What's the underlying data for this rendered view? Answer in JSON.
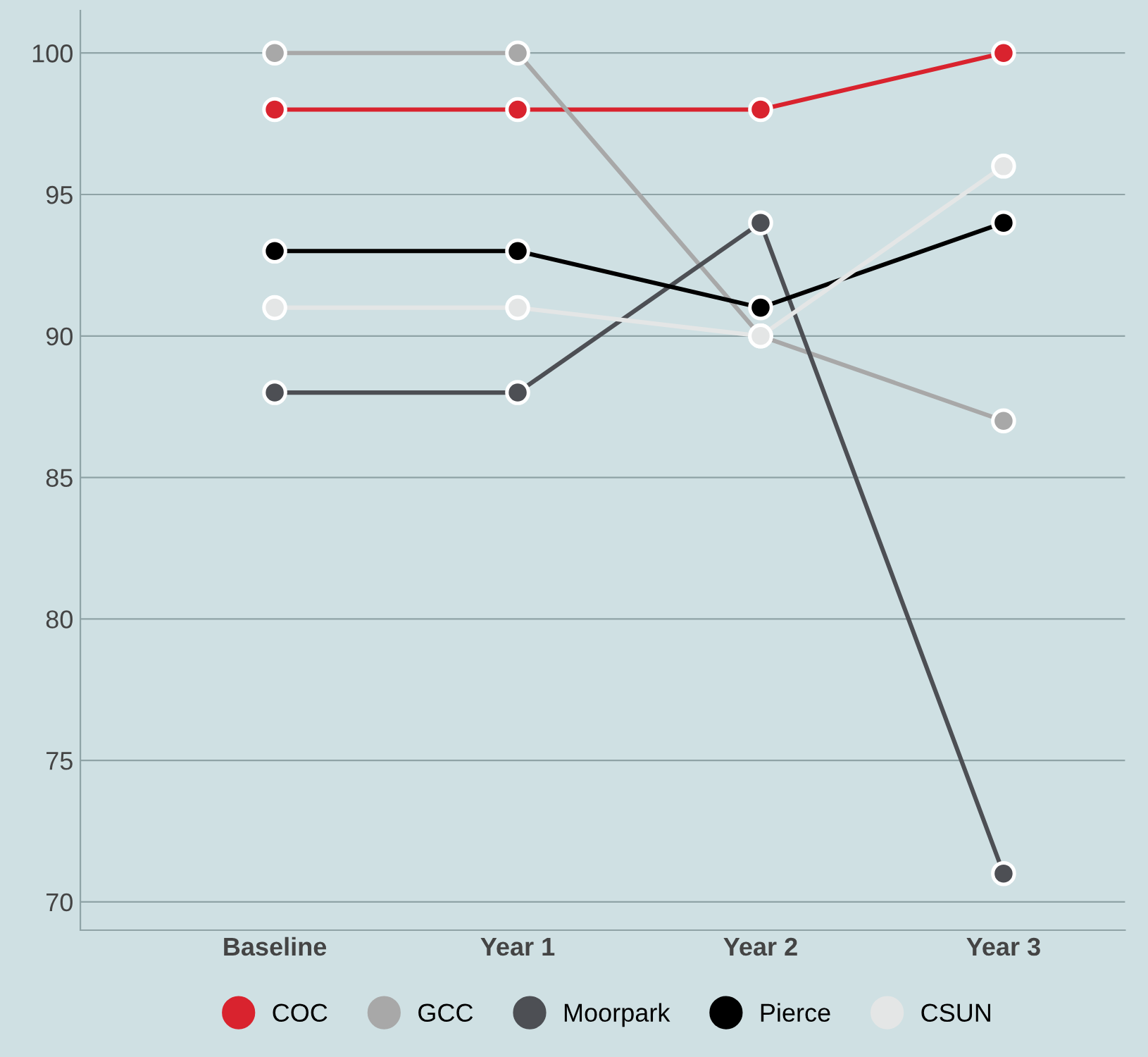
{
  "chart_data": {
    "type": "line",
    "categories": [
      "Baseline",
      "Year 1",
      "Year 2",
      "Year 3"
    ],
    "series": [
      {
        "name": "COC",
        "color": "#d9232e",
        "values": [
          98,
          98,
          98,
          100
        ]
      },
      {
        "name": "GCC",
        "color": "#a8a8a8",
        "values": [
          100,
          100,
          90,
          87
        ]
      },
      {
        "name": "Moorpark",
        "color": "#4d4f54",
        "values": [
          88,
          88,
          94,
          71
        ]
      },
      {
        "name": "Pierce",
        "color": "#000000",
        "values": [
          93,
          93,
          91,
          94
        ]
      },
      {
        "name": "CSUN",
        "color": "#e4e6e6",
        "values": [
          91,
          91,
          90,
          96
        ]
      }
    ],
    "ylim": [
      69,
      101.5
    ],
    "yticks": [
      70,
      75,
      80,
      85,
      90,
      95,
      100
    ],
    "grid": "y",
    "legend": "bottom",
    "marker": "circle",
    "line_style": "solid"
  }
}
